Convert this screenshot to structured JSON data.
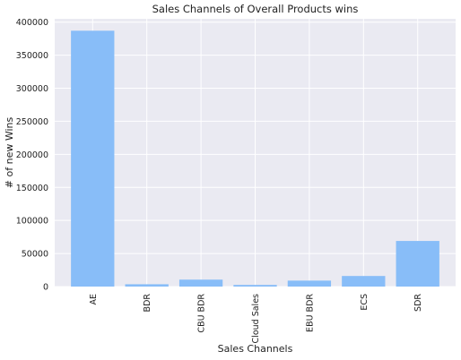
{
  "chart_data": {
    "type": "bar",
    "title": "Sales Channels of Overall Products wins",
    "xlabel": "Sales Channels",
    "ylabel": "# of new Wins",
    "categories": [
      "AE",
      "BDR",
      "CBU BDR",
      "Cloud Sales",
      "EBU BDR",
      "ECS",
      "SDR"
    ],
    "values": [
      387000,
      3500,
      10500,
      2500,
      9000,
      16000,
      69000
    ],
    "ylim": [
      0,
      405000
    ],
    "yticks": [
      0,
      50000,
      100000,
      150000,
      200000,
      250000,
      300000,
      350000,
      400000
    ],
    "ytick_labels": [
      "0",
      "50000",
      "100000",
      "150000",
      "200000",
      "250000",
      "300000",
      "350000",
      "400000"
    ],
    "grid": true,
    "legend": "none",
    "bar_color": "#88bdf8",
    "background_color": "#eaeaf2",
    "grid_color": "#ffffff"
  }
}
